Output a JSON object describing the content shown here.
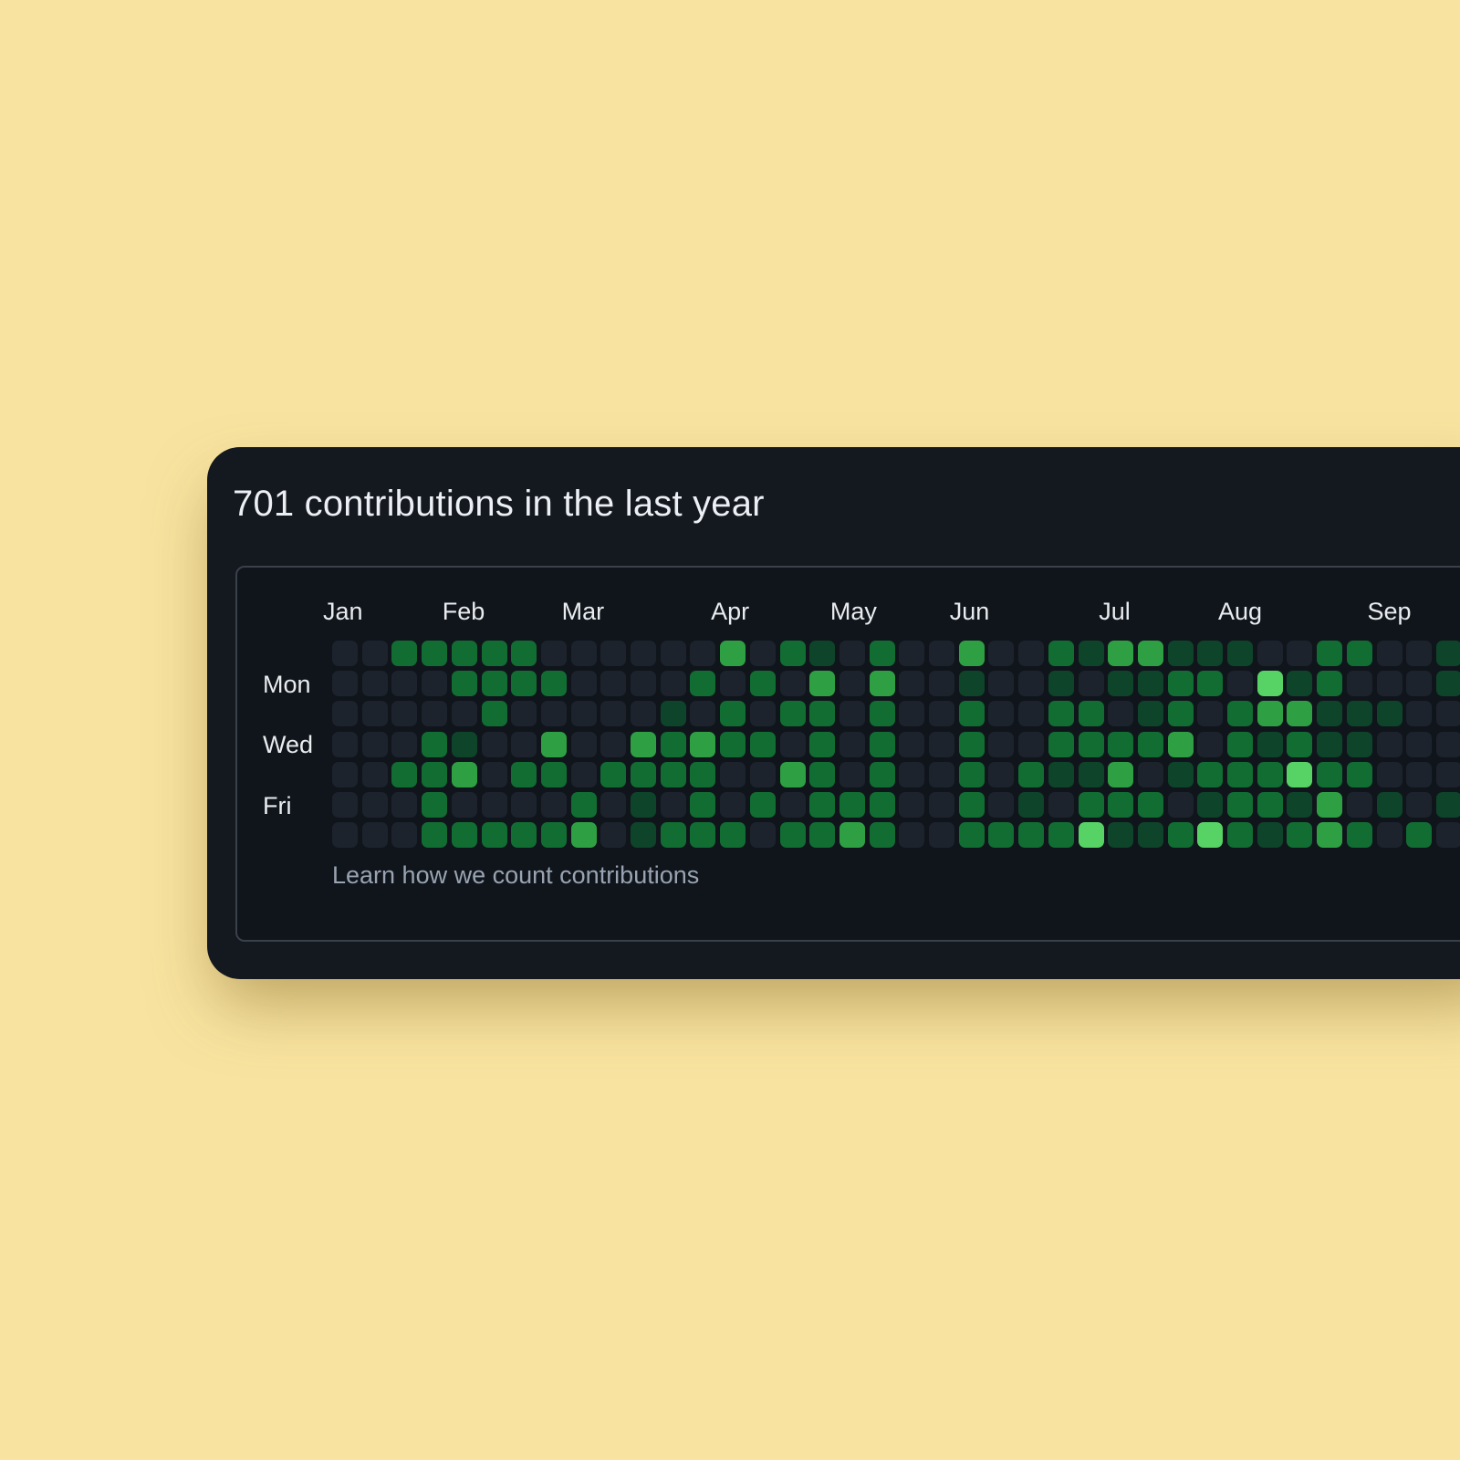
{
  "page": {
    "background_color": "#f8e3a0"
  },
  "card": {
    "background_color": "#14181f",
    "title": "701 contributions in the last year",
    "footer_link": "Learn how we count contributions"
  },
  "chart_data": {
    "type": "heatmap",
    "title": "701 contributions in the last year",
    "total_contributions": 701,
    "legend_position": "none",
    "grid": "contribution calendar, 7 rows (Sun-Sat) x 38 week columns, months Jan-Sep visible, right side cut off by viewport",
    "day_labels": [
      {
        "label": "Mon",
        "row": 1
      },
      {
        "label": "Wed",
        "row": 3
      },
      {
        "label": "Fri",
        "row": 5
      }
    ],
    "month_labels": [
      {
        "label": "Jan",
        "week": 0
      },
      {
        "label": "Feb",
        "week": 4
      },
      {
        "label": "Mar",
        "week": 8
      },
      {
        "label": "Apr",
        "week": 13
      },
      {
        "label": "May",
        "week": 17
      },
      {
        "label": "Jun",
        "week": 21
      },
      {
        "label": "Jul",
        "week": 26
      },
      {
        "label": "Aug",
        "week": 30
      },
      {
        "label": "Sep",
        "week": 35
      }
    ],
    "level_colors": {
      "0": "#1d232c",
      "1": "#0e4429",
      "2": "#116d32",
      "3": "#2ea043",
      "4": "#56d364"
    },
    "weeks_visible": 38,
    "levels_by_day_row": [
      [
        0,
        0,
        2,
        2,
        2,
        2,
        2,
        0,
        0,
        0,
        0,
        0,
        0,
        3,
        0,
        2,
        1,
        0,
        2,
        0,
        0,
        3,
        0,
        0,
        2,
        1,
        3,
        3,
        1,
        1,
        1,
        0,
        0,
        2,
        2,
        0,
        0,
        1
      ],
      [
        0,
        0,
        0,
        0,
        2,
        2,
        2,
        2,
        0,
        0,
        0,
        0,
        2,
        0,
        2,
        0,
        3,
        0,
        3,
        0,
        0,
        1,
        0,
        0,
        1,
        0,
        1,
        1,
        2,
        2,
        0,
        4,
        1,
        2,
        0,
        0,
        0,
        1
      ],
      [
        0,
        0,
        0,
        0,
        0,
        2,
        0,
        0,
        0,
        0,
        0,
        1,
        0,
        2,
        0,
        2,
        2,
        0,
        2,
        0,
        0,
        2,
        0,
        0,
        2,
        2,
        0,
        1,
        2,
        0,
        2,
        3,
        3,
        1,
        1,
        1,
        0,
        0
      ],
      [
        0,
        0,
        0,
        2,
        1,
        0,
        0,
        3,
        0,
        0,
        3,
        2,
        3,
        2,
        2,
        0,
        2,
        0,
        2,
        0,
        0,
        2,
        0,
        0,
        2,
        2,
        2,
        2,
        3,
        0,
        2,
        1,
        2,
        1,
        1,
        0,
        0,
        0
      ],
      [
        0,
        0,
        2,
        2,
        3,
        0,
        2,
        2,
        0,
        2,
        2,
        2,
        2,
        0,
        0,
        3,
        2,
        0,
        2,
        0,
        0,
        2,
        0,
        2,
        1,
        1,
        3,
        0,
        1,
        2,
        2,
        2,
        4,
        2,
        2,
        0,
        0,
        0
      ],
      [
        0,
        0,
        0,
        2,
        0,
        0,
        0,
        0,
        2,
        0,
        1,
        0,
        2,
        0,
        2,
        0,
        2,
        2,
        2,
        0,
        0,
        2,
        0,
        1,
        0,
        2,
        2,
        2,
        0,
        1,
        2,
        2,
        1,
        3,
        0,
        1,
        0,
        1
      ],
      [
        0,
        0,
        0,
        2,
        2,
        2,
        2,
        2,
        3,
        0,
        1,
        2,
        2,
        2,
        0,
        2,
        2,
        3,
        2,
        0,
        0,
        2,
        2,
        2,
        2,
        4,
        1,
        1,
        2,
        4,
        2,
        1,
        2,
        3,
        2,
        0,
        2,
        0
      ]
    ]
  },
  "layout_hints": {
    "grid_origin_x_in_box": 104,
    "grid_origin_y_in_box": 80,
    "col_pitch": 32.7,
    "row_pitch": 33.2,
    "day_label_rows_y": [
      113,
      179,
      246
    ]
  }
}
